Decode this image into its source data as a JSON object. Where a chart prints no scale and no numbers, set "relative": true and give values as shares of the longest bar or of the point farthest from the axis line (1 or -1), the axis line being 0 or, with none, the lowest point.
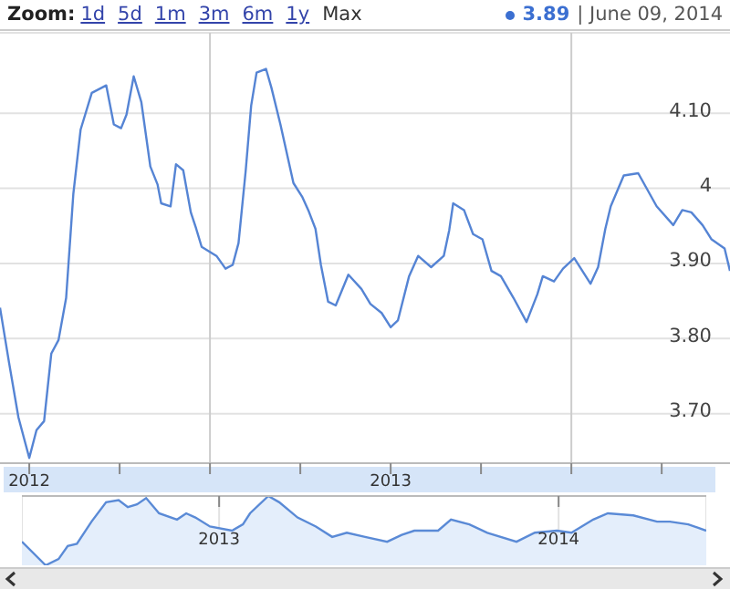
{
  "chart_data": [
    {
      "type": "line",
      "annotations": [
        "Zoom:",
        "1d",
        "5d",
        "1m",
        "3m",
        "6m",
        "1y",
        "Max",
        "3.89",
        "| June 09, 2014"
      ],
      "x": [
        2011.919,
        2011.944,
        2011.97,
        2012.0,
        2012.02,
        2012.041,
        2012.061,
        2012.081,
        2012.102,
        2012.122,
        2012.142,
        2012.173,
        2012.213,
        2012.234,
        2012.254,
        2012.269,
        2012.289,
        2012.31,
        2012.335,
        2012.355,
        2012.365,
        2012.391,
        2012.406,
        2012.426,
        2012.447,
        2012.462,
        2012.477,
        2012.518,
        2012.543,
        2012.563,
        2012.579,
        2012.599,
        2012.614,
        2012.629,
        2012.655,
        2012.67,
        2012.695,
        2012.731,
        2012.756,
        2012.772,
        2012.792,
        2012.807,
        2012.827,
        2012.848,
        2012.883,
        2012.919,
        2012.944,
        2012.975,
        2013.0,
        2013.02,
        2013.051,
        2013.076,
        2013.112,
        2013.147,
        2013.162,
        2013.173,
        2013.203,
        2013.228,
        2013.254,
        2013.279,
        2013.305,
        2013.34,
        2013.376,
        2013.406,
        2013.421,
        2013.452,
        2013.477,
        2013.508,
        2013.553,
        2013.574,
        2013.594,
        2013.609,
        2013.645,
        2013.685,
        2013.736,
        2013.782,
        2013.807,
        2013.832,
        2013.863,
        2013.888,
        2013.924,
        2013.939
      ],
      "series": [
        {
          "color": "#5584d4",
          "values": [
            3.841,
            3.768,
            3.695,
            3.641,
            3.678,
            3.69,
            3.78,
            3.798,
            3.854,
            3.993,
            4.078,
            4.127,
            4.137,
            4.085,
            4.08,
            4.098,
            4.149,
            4.115,
            4.029,
            4.005,
            3.98,
            3.976,
            4.032,
            4.024,
            3.968,
            3.946,
            3.922,
            3.91,
            3.893,
            3.898,
            3.927,
            4.024,
            4.11,
            4.154,
            4.159,
            4.134,
            4.085,
            4.007,
            3.988,
            3.971,
            3.946,
            3.898,
            3.849,
            3.844,
            3.885,
            3.866,
            3.846,
            3.834,
            3.815,
            3.824,
            3.883,
            3.91,
            3.895,
            3.91,
            3.944,
            3.98,
            3.971,
            3.939,
            3.932,
            3.89,
            3.883,
            3.854,
            3.822,
            3.859,
            3.883,
            3.876,
            3.893,
            3.907,
            3.873,
            3.895,
            3.946,
            3.976,
            4.017,
            4.02,
            3.976,
            3.951,
            3.971,
            3.968,
            3.951,
            3.932,
            3.92,
            3.89
          ]
        }
      ],
      "xlim": [
        2011.919,
        2013.939
      ],
      "xticks": [
        2012,
        {
          "value": 2012.25,
          "label": null
        },
        {
          "value": 2012.5,
          "label": null
        },
        {
          "value": 2012.75,
          "label": null
        },
        2013,
        {
          "value": 2013.25,
          "label": null
        },
        {
          "value": 2013.5,
          "label": null
        },
        {
          "value": 2013.75,
          "label": null
        }
      ],
      "ylim": [
        3.634,
        4.207
      ],
      "yticks": [
        {
          "value": 3.7,
          "label": "3.70"
        },
        {
          "value": 3.8,
          "label": "3.80"
        },
        {
          "value": 3.9,
          "label": "3.90"
        },
        4,
        {
          "value": 4.1,
          "label": "4.10"
        }
      ],
      "ref_lines": [
        {
          "axis": "x",
          "value": 2012.5,
          "color": "#cccccc"
        },
        {
          "axis": "x",
          "value": 2013.5,
          "color": "#cccccc"
        }
      ],
      "grid": "y",
      "legend": false,
      "marker": "none",
      "line_style": "solid"
    },
    {
      "type": "area",
      "relative": true,
      "x": [
        2012.419,
        2012.489,
        2012.527,
        2012.554,
        2012.581,
        2012.624,
        2012.667,
        2012.704,
        2012.731,
        2012.758,
        2012.785,
        2012.823,
        2012.876,
        2012.903,
        2012.93,
        2012.973,
        2013.038,
        2013.07,
        2013.091,
        2013.145,
        2013.177,
        2013.231,
        2013.285,
        2013.333,
        2013.376,
        2013.43,
        2013.495,
        2013.538,
        2013.575,
        2013.645,
        2013.683,
        2013.737,
        2013.79,
        2013.876,
        2013.93,
        2013.995,
        2014.038,
        2014.102,
        2014.145,
        2014.22,
        2014.29,
        2014.328,
        2014.382,
        2014.435
      ],
      "series": [
        {
          "color": "#5a8ad6",
          "values": [
            0.34,
            0,
            0.09,
            0.28,
            0.31,
            0.63,
            0.91,
            0.94,
            0.84,
            0.88,
            0.97,
            0.75,
            0.66,
            0.75,
            0.69,
            0.56,
            0.5,
            0.59,
            0.75,
            1,
            0.91,
            0.69,
            0.56,
            0.41,
            0.47,
            0.41,
            0.34,
            0.44,
            0.5,
            0.5,
            0.66,
            0.59,
            0.47,
            0.34,
            0.47,
            0.5,
            0.47,
            0.66,
            0.75,
            0.72,
            0.63,
            0.63,
            0.59,
            0.5
          ]
        }
      ],
      "xlim": [
        2012.419,
        2014.435
      ],
      "xticks": [
        2013,
        2014
      ],
      "grid": "x",
      "legend": false,
      "marker": "none"
    }
  ]
}
